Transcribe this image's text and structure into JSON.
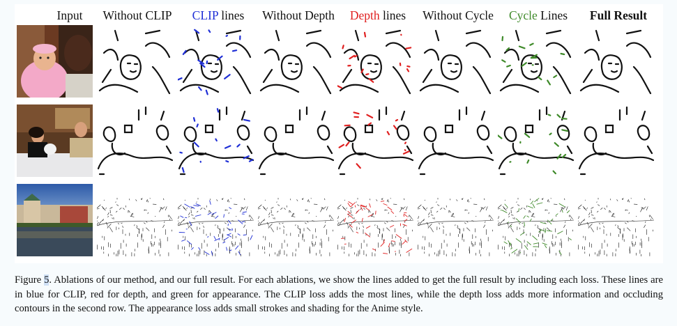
{
  "columns": [
    {
      "label": "Input",
      "color": "#111111",
      "bold": false
    },
    {
      "label_parts": [
        "",
        "Without CLIP"
      ],
      "color": "#111111",
      "bold": false
    },
    {
      "label_parts": [
        "CLIP",
        " lines"
      ],
      "accent": "#1f2fd6",
      "bold": false
    },
    {
      "label_parts": [
        "",
        "Without Depth"
      ],
      "color": "#111111",
      "bold": false
    },
    {
      "label_parts": [
        "Depth",
        " lines"
      ],
      "accent": "#e02020",
      "bold": false
    },
    {
      "label_parts": [
        "",
        "Without Cycle"
      ],
      "color": "#111111",
      "bold": false
    },
    {
      "label_parts": [
        "Cycle",
        " Lines"
      ],
      "accent": "#3f8a2a",
      "bold": false
    },
    {
      "label_parts": [
        "",
        "Full Result"
      ],
      "color": "#111111",
      "bold": true
    }
  ],
  "rows": [
    "baby-portrait",
    "cafe-scene",
    "harbor-city"
  ],
  "line_colors": {
    "clip": "#1f2fd6",
    "depth": "#e02020",
    "cycle": "#3f8a2a",
    "base": "#111111"
  },
  "caption": {
    "figure_label": "Figure ",
    "figure_number": "5",
    "text": ". Ablations of our method, and our full result. For each ablations, we show the lines added to get the full result by including each loss. These lines are in blue for CLIP, red for depth, and green for appearance. The CLIP loss adds the most lines, while the depth loss adds more information and occluding contours in the second row. The appearance loss adds small strokes and shading for the Anime style."
  }
}
